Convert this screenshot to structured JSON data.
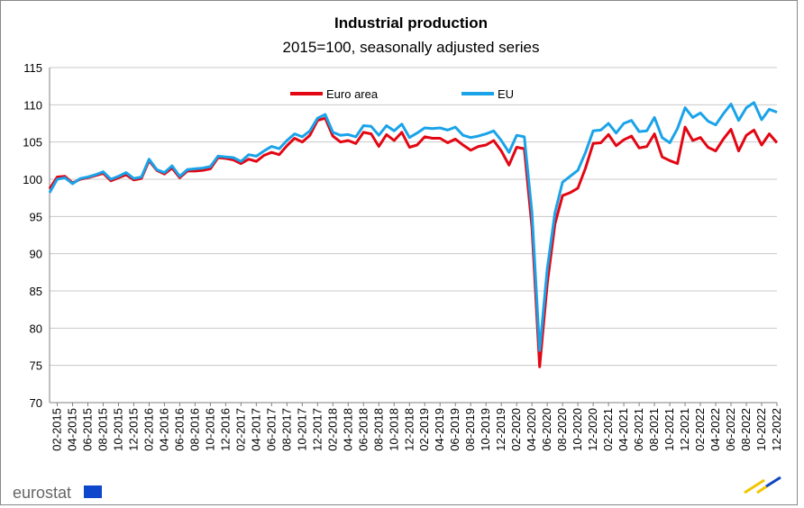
{
  "chart_data": {
    "type": "line",
    "title": "Industrial production",
    "subtitle": "2015=100, seasonally adjusted series",
    "logo": "eurostat",
    "categories": [
      null,
      "02-2015",
      null,
      "04-2015",
      null,
      "06-2015",
      null,
      "08-2015",
      null,
      "10-2015",
      null,
      "12-2015",
      null,
      "02-2016",
      null,
      "04-2016",
      null,
      "06-2016",
      null,
      "08-2016",
      null,
      "10-2016",
      null,
      "12-2016",
      null,
      "02-2017",
      null,
      "04-2017",
      null,
      "06-2017",
      null,
      "08-2017",
      null,
      "10-2017",
      null,
      "12-2017",
      null,
      "02-2018",
      null,
      "04-2018",
      null,
      "06-2018",
      null,
      "08-2018",
      null,
      "10-2018",
      null,
      "12-2018",
      null,
      "02-2019",
      null,
      "04-2019",
      null,
      "06-2019",
      null,
      "08-2019",
      null,
      "10-2019",
      null,
      "12-2019",
      null,
      "02-2020",
      null,
      "04-2020",
      null,
      "06-2020",
      null,
      "08-2020",
      null,
      "10-2020",
      null,
      "12-2020",
      null,
      "02-2021",
      null,
      "04-2021",
      null,
      "06-2021",
      null,
      "08-2021",
      null,
      "10-2021",
      null,
      "12-2021",
      null,
      "02-2022",
      null,
      "04-2022",
      null,
      "06-2022",
      null,
      "08-2022",
      null,
      "10-2022",
      null,
      "12-2022"
    ],
    "series": [
      {
        "name": "Euro area",
        "color": "#e30613",
        "values": [
          98.7,
          100.3,
          100.4,
          99.5,
          100.0,
          100.2,
          100.5,
          100.8,
          99.8,
          100.2,
          100.6,
          99.9,
          100.1,
          102.5,
          101.2,
          100.7,
          101.5,
          100.2,
          101.1,
          101.1,
          101.2,
          101.4,
          102.9,
          102.8,
          102.6,
          102.1,
          102.7,
          102.4,
          103.2,
          103.6,
          103.3,
          104.5,
          105.5,
          105.0,
          105.9,
          107.9,
          108.2,
          105.8,
          105.0,
          105.2,
          104.8,
          106.3,
          106.1,
          104.4,
          106.0,
          105.2,
          106.3,
          104.3,
          104.6,
          105.7,
          105.5,
          105.5,
          104.9,
          105.4,
          104.6,
          103.9,
          104.4,
          104.6,
          105.2,
          103.8,
          101.9,
          104.3,
          104.1,
          93.5,
          74.8,
          86.0,
          94.0,
          97.8,
          98.2,
          98.8,
          101.5,
          104.8,
          104.9,
          106.0,
          104.5,
          105.3,
          105.8,
          104.2,
          104.4,
          106.1,
          103.0,
          102.5,
          102.1,
          107.0,
          105.2,
          105.6,
          104.3,
          103.8,
          105.4,
          106.7,
          103.8,
          105.9,
          106.6,
          104.6,
          106.1,
          104.9
        ]
      },
      {
        "name": "EU",
        "color": "#1aa3e8",
        "values": [
          98.2,
          100.0,
          100.2,
          99.4,
          100.1,
          100.3,
          100.6,
          101.0,
          100.0,
          100.4,
          100.9,
          100.1,
          100.3,
          102.7,
          101.3,
          100.9,
          101.8,
          100.4,
          101.3,
          101.4,
          101.5,
          101.7,
          103.1,
          103.0,
          102.9,
          102.4,
          103.3,
          103.1,
          103.8,
          104.4,
          104.1,
          105.2,
          106.1,
          105.7,
          106.5,
          108.2,
          108.7,
          106.3,
          105.9,
          106.0,
          105.7,
          107.2,
          107.1,
          105.9,
          107.2,
          106.5,
          107.4,
          105.6,
          106.2,
          106.9,
          106.8,
          106.9,
          106.6,
          107.0,
          105.9,
          105.6,
          105.8,
          106.1,
          106.5,
          105.2,
          103.6,
          105.9,
          105.7,
          95.5,
          77.0,
          88.0,
          95.5,
          99.6,
          100.4,
          101.2,
          103.6,
          106.5,
          106.6,
          107.5,
          106.2,
          107.5,
          107.9,
          106.4,
          106.5,
          108.3,
          105.6,
          104.9,
          106.8,
          109.6,
          108.3,
          108.9,
          107.8,
          107.3,
          108.8,
          110.1,
          107.9,
          109.6,
          110.3,
          108.0,
          109.4,
          109.0
        ]
      }
    ],
    "ylim": [
      70,
      115
    ],
    "yticks": [
      70,
      75,
      80,
      85,
      90,
      95,
      100,
      105,
      110,
      115
    ],
    "grid": true,
    "legend": "top"
  }
}
